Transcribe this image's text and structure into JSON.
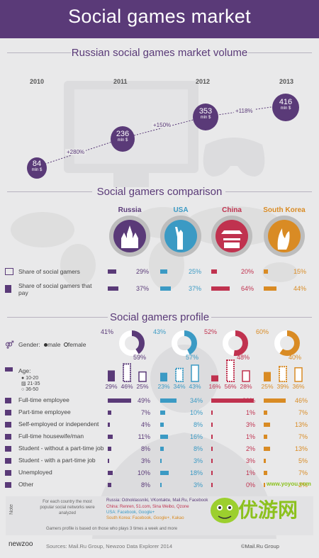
{
  "title": "Social games market",
  "colors": {
    "purple": "#5a3a78",
    "blue": "#3b9ac4",
    "red": "#c0324f",
    "orange": "#d98b24",
    "light": "#e9e9ea"
  },
  "market": {
    "section_title": "Russian social games market volume",
    "chart_data": {
      "type": "line",
      "x": [
        "2010",
        "2011",
        "2012",
        "2013"
      ],
      "values": [
        84,
        236,
        353,
        416
      ],
      "unit_label": "mln $",
      "growth": [
        "+280%",
        "+150%",
        "+118%"
      ]
    }
  },
  "comparison": {
    "section_title": "Social gamers comparison",
    "countries": [
      "Russia",
      "USA",
      "China",
      "South Korea"
    ],
    "rows": [
      {
        "label": "Share of social gamers",
        "values": [
          "29%",
          "25%",
          "20%",
          "15%"
        ]
      },
      {
        "label": "Share of social gamers that pay",
        "values": [
          "37%",
          "37%",
          "64%",
          "44%"
        ]
      }
    ]
  },
  "profile": {
    "section_title": "Social gamers profile",
    "gender": {
      "label": "Gender:",
      "legend_male": "male",
      "legend_female": "female",
      "male": [
        "41%",
        "43%",
        "52%",
        "60%"
      ],
      "female": [
        "59%",
        "57%",
        "48%",
        "40%"
      ]
    },
    "age": {
      "label": "Age:",
      "groups": [
        "10-20",
        "21-35",
        "36-50"
      ],
      "values": [
        [
          "29%",
          "46%",
          "25%"
        ],
        [
          "23%",
          "34%",
          "43%"
        ],
        [
          "16%",
          "56%",
          "28%"
        ],
        [
          "25%",
          "39%",
          "36%"
        ]
      ]
    },
    "occupation": [
      {
        "label": "Full-time employee",
        "values": [
          "49%",
          "34%",
          "89%",
          "46%"
        ]
      },
      {
        "label": "Part-time employee",
        "values": [
          "7%",
          "10%",
          "1%",
          "7%"
        ]
      },
      {
        "label": "Self-employed or independent",
        "values": [
          "4%",
          "8%",
          "3%",
          "13%"
        ]
      },
      {
        "label": "Full-time housewife/man",
        "values": [
          "11%",
          "16%",
          "1%",
          "7%"
        ]
      },
      {
        "label": "Student - without a part-time job",
        "values": [
          "8%",
          "8%",
          "2%",
          "13%"
        ]
      },
      {
        "label": "Student - with a part-time job",
        "values": [
          "3%",
          "3%",
          "3%",
          "5%"
        ]
      },
      {
        "label": "Unemployed",
        "values": [
          "10%",
          "18%",
          "1%",
          "7%"
        ]
      },
      {
        "label": "Other",
        "values": [
          "8%",
          "3%",
          "0%",
          "2%"
        ]
      }
    ]
  },
  "notes": {
    "note_label": "Note",
    "left": "For each country the most popular social networks were analyzed",
    "russia": "Russia: Odnoklassniki, VKontakte, Mail.Ru, Facebook",
    "china": "China: Renren, 51.com, Sina Weibo, Qzone",
    "usa": "USA: Facebook, Google+",
    "korea": "South Korea: Facebook, Google+, Kakao",
    "profile_note": "Gamers profile is based on those who plays 3 times a week and more"
  },
  "footer": {
    "logo": "newzoo",
    "sources": "Sources: Mail.Ru Group, Newzoo Data Explorer 2014",
    "mailru": "©Mail.Ru Group",
    "watermark": "优游网",
    "watermark_url": "www.yoyou.com"
  }
}
